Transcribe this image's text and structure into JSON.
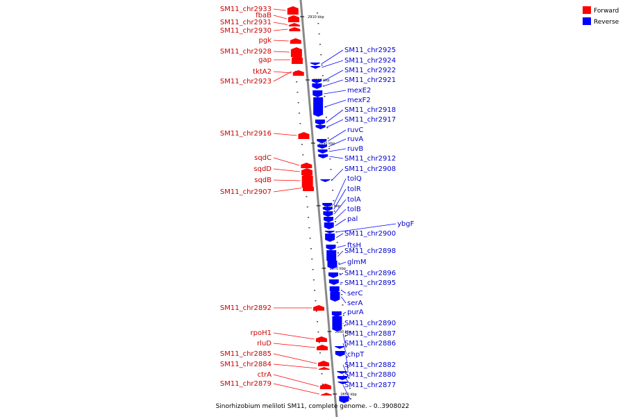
{
  "colors": {
    "forward": "#ff0000",
    "reverse": "#0000ff",
    "forward_label": "#cc0000",
    "reverse_label": "#0000cc",
    "axis": "#888888"
  },
  "legend": {
    "forward": "Forward",
    "reverse": "Reverse"
  },
  "caption": "Sinorhizobium meliloti SM11, complete genome. - 0..3908022",
  "ticks": [
    "2910 kbp",
    "2900 kbp",
    "2890 kbp",
    "2880 kbp",
    "2870 kbp",
    "2860 kbp",
    "2850 kbp"
  ],
  "forward_genes": [
    "SM11_chr2933",
    "fbaB",
    "SM11_chr2931",
    "SM11_chr2930",
    "pgk",
    "SM11_chr2928",
    "gap",
    "tktA2",
    "SM11_chr2923",
    "SM11_chr2916",
    "sqdC",
    "sqdD",
    "sqdB",
    "SM11_chr2907",
    "SM11_chr2892",
    "rpoH1",
    "rluD",
    "SM11_chr2885",
    "SM11_chr2884",
    "ctrA",
    "SM11_chr2879"
  ],
  "reverse_genes": [
    "SM11_chr2925",
    "SM11_chr2924",
    "SM11_chr2922",
    "SM11_chr2921",
    "mexE2",
    "mexF2",
    "SM11_chr2918",
    "SM11_chr2917",
    "ruvC",
    "ruvA",
    "ruvB",
    "SM11_chr2912",
    "SM11_chr2908",
    "tolQ",
    "tolR",
    "tolA",
    "tolB",
    "pal",
    "ybgF",
    "SM11_chr2900",
    "ftsH",
    "SM11_chr2898",
    "glmM",
    "SM11_chr2896",
    "SM11_chr2895",
    "serC",
    "serA",
    "purA",
    "SM11_chr2890",
    "SM11_chr2887",
    "SM11_chr2886",
    "chpT",
    "SM11_chr2882",
    "SM11_chr2880",
    "SM11_chr2877"
  ]
}
